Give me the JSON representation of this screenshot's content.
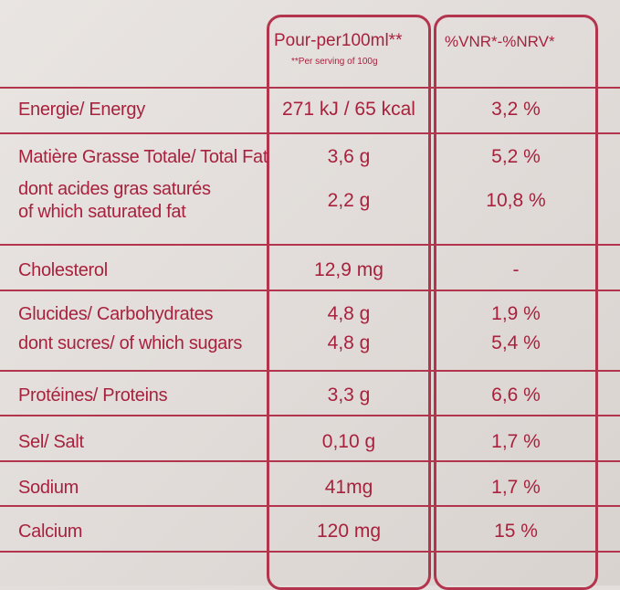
{
  "header": {
    "col1_title": "Pour-per100ml**",
    "col1_sub": "**Per serving of 100g",
    "col2_title": "%VNR*-%NRV*"
  },
  "rows": [
    {
      "label": "Energie/ Energy",
      "value": "271 kJ / 65 kcal",
      "pct": "3,2 %"
    },
    {
      "label": "Matière Grasse Totale/ Total Fat",
      "value": "3,6 g",
      "pct": "5,2 %"
    },
    {
      "label_line1": "dont acides gras saturés",
      "label_line2": "of which saturated fat",
      "value": "2,2 g",
      "pct": "10,8 %"
    },
    {
      "label": "Cholesterol",
      "value": "12,9 mg",
      "pct": "-"
    },
    {
      "label": "Glucides/ Carbohydrates",
      "value": "4,8 g",
      "pct": "1,9 %"
    },
    {
      "label": "dont sucres/ of which sugars",
      "value": "4,8 g",
      "pct": "5,4 %"
    },
    {
      "label": "Protéines/ Proteins",
      "value": "3,3 g",
      "pct": "6,6 %"
    },
    {
      "label": "Sel/ Salt",
      "value": "0,10 g",
      "pct": "1,7 %"
    },
    {
      "label": "Sodium",
      "value": "41mg",
      "pct": "1,7 %"
    },
    {
      "label": "Calcium",
      "value": "120 mg",
      "pct": "15 %"
    }
  ],
  "colors": {
    "ink": "#a8213d",
    "border": "#b3344d",
    "background": "#e3dedb"
  }
}
